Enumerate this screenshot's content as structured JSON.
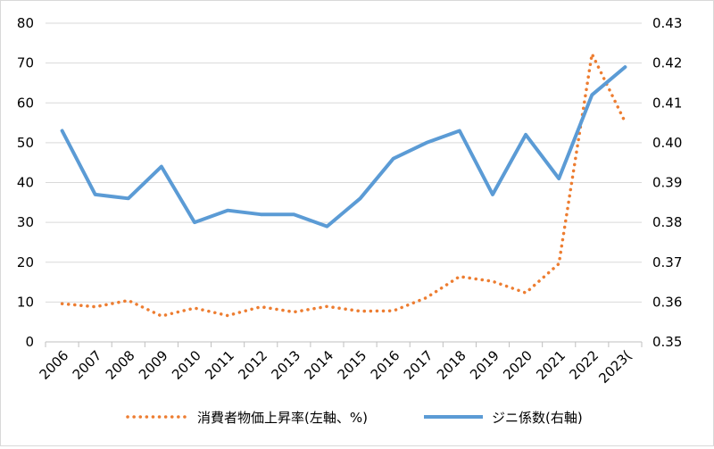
{
  "chart_data": {
    "type": "line",
    "title": "",
    "categories": [
      "2006",
      "2007",
      "2008",
      "2009",
      "2010",
      "2011",
      "2012",
      "2013",
      "2014",
      "2015",
      "2016",
      "2017",
      "2018",
      "2019",
      "2020",
      "2021",
      "2022",
      "2023("
    ],
    "series": [
      {
        "name": "消費者物価上昇率(左軸、%)",
        "axis": "left",
        "style": "dotted",
        "color": "#ED7D31",
        "values": [
          9.6,
          8.8,
          10.4,
          6.5,
          8.5,
          6.6,
          8.8,
          7.5,
          8.9,
          7.7,
          7.8,
          11.1,
          16.4,
          15.2,
          12.3,
          19.6,
          72.3,
          55.2
        ]
      },
      {
        "name": "ジニ係数(右軸)",
        "axis": "right",
        "style": "solid",
        "color": "#5B9BD5",
        "values": [
          0.403,
          0.387,
          0.386,
          0.394,
          0.38,
          0.383,
          0.382,
          0.382,
          0.379,
          0.386,
          0.396,
          0.4,
          0.403,
          0.387,
          0.402,
          0.391,
          0.412,
          0.419
        ]
      }
    ],
    "y_left": {
      "ylim": [
        0,
        80
      ],
      "ticks": [
        "0",
        "10",
        "20",
        "30",
        "40",
        "50",
        "60",
        "70",
        "80"
      ]
    },
    "y_right": {
      "ylim": [
        0.35,
        0.43
      ],
      "ticks": [
        "0.35",
        "0.36",
        "0.37",
        "0.38",
        "0.39",
        "0.40",
        "0.41",
        "0.42",
        "0.43"
      ]
    },
    "grid": true,
    "legend": "bottom"
  }
}
